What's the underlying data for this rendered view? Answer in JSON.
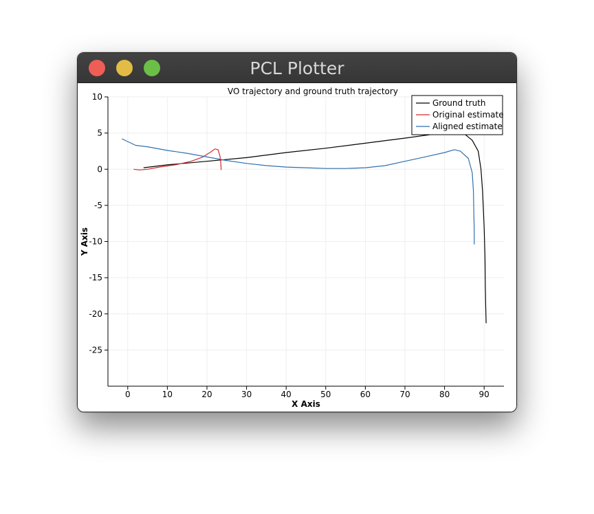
{
  "window": {
    "title": "PCL Plotter"
  },
  "colors": {
    "ground_truth": "#000000",
    "original": "#d62728",
    "aligned": "#2e6fb0"
  },
  "chart_data": {
    "type": "line",
    "title": "VO trajectory and ground truth trajectory",
    "xlabel": "X Axis",
    "ylabel": "Y Axis",
    "xlim": [
      -5,
      95
    ],
    "ylim": [
      -30,
      10
    ],
    "xticks": [
      "0",
      "10",
      "20",
      "30",
      "40",
      "50",
      "60",
      "70",
      "80",
      "90"
    ],
    "yticks": [
      "10",
      "5",
      "0",
      "-5",
      "-10",
      "-15",
      "-20",
      "-25"
    ],
    "grid": true,
    "legend_position": "top-right",
    "series": [
      {
        "name": "Ground truth",
        "color": "#000000",
        "points": [
          [
            4,
            0.2
          ],
          [
            10,
            0.6
          ],
          [
            20,
            1.1
          ],
          [
            30,
            1.6
          ],
          [
            40,
            2.3
          ],
          [
            50,
            2.9
          ],
          [
            60,
            3.6
          ],
          [
            70,
            4.3
          ],
          [
            78,
            4.9
          ],
          [
            82,
            5.2
          ],
          [
            85,
            4.9
          ],
          [
            87,
            4
          ],
          [
            88.5,
            2.5
          ],
          [
            89.2,
            0
          ],
          [
            89.6,
            -3
          ],
          [
            90,
            -8
          ],
          [
            90.2,
            -12
          ],
          [
            90.3,
            -16
          ],
          [
            90.4,
            -19
          ],
          [
            90.5,
            -21.3
          ]
        ]
      },
      {
        "name": "Original estimate",
        "color": "#d62728",
        "points": [
          [
            1.5,
            0
          ],
          [
            3,
            -0.1
          ],
          [
            5,
            0
          ],
          [
            8,
            0.3
          ],
          [
            12,
            0.6
          ],
          [
            16,
            1.1
          ],
          [
            19,
            1.7
          ],
          [
            21,
            2.4
          ],
          [
            22,
            2.8
          ],
          [
            22.8,
            2.7
          ],
          [
            23.3,
            1.8
          ],
          [
            23.5,
            0.8
          ],
          [
            23.6,
            -0.1
          ]
        ]
      },
      {
        "name": "Aligned estimate",
        "color": "#2e6fb0",
        "points": [
          [
            -1.5,
            4.2
          ],
          [
            2,
            3.3
          ],
          [
            5,
            3.1
          ],
          [
            10,
            2.6
          ],
          [
            15,
            2.2
          ],
          [
            20,
            1.7
          ],
          [
            25,
            1.2
          ],
          [
            30,
            0.8
          ],
          [
            35,
            0.5
          ],
          [
            40,
            0.3
          ],
          [
            45,
            0.2
          ],
          [
            50,
            0.1
          ],
          [
            55,
            0.1
          ],
          [
            60,
            0.2
          ],
          [
            65,
            0.5
          ],
          [
            70,
            1.1
          ],
          [
            75,
            1.7
          ],
          [
            80,
            2.3
          ],
          [
            82.5,
            2.7
          ],
          [
            84,
            2.5
          ],
          [
            86,
            1.5
          ],
          [
            87,
            -0.5
          ],
          [
            87.3,
            -3
          ],
          [
            87.4,
            -6
          ],
          [
            87.5,
            -8.5
          ],
          [
            87.5,
            -10.4
          ]
        ]
      }
    ]
  }
}
